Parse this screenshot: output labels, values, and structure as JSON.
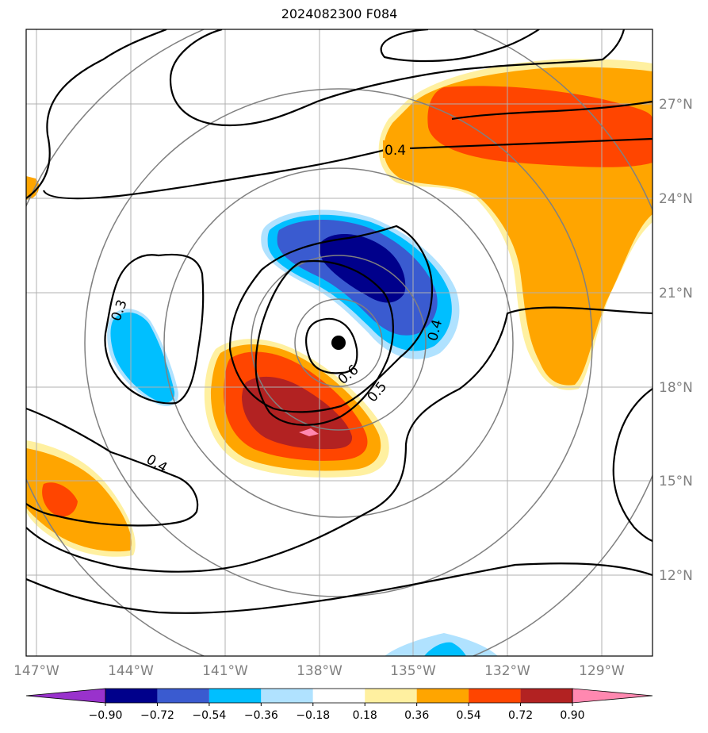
{
  "title": "2024082300 F084",
  "map": {
    "lon_ticks": [
      "147°W",
      "144°W",
      "141°W",
      "138°W",
      "135°W",
      "132°W",
      "129°W"
    ],
    "lat_ticks": [
      "27°N",
      "24°N",
      "21°N",
      "18°N",
      "15°N",
      "12°N"
    ],
    "storm_center": {
      "lon": "137.3°W",
      "lat": "19.5°N"
    },
    "contour_labels": [
      "0.4",
      "0.3",
      "0.4",
      "0.6",
      "0.5",
      "0.4"
    ]
  },
  "colorbar": {
    "colors": [
      "#9932cc",
      "#00008b",
      "#3a5bd0",
      "#00bfff",
      "#b0e2ff",
      "#ffffff",
      "#fff0a0",
      "#ffa500",
      "#ff4500",
      "#b22222",
      "#ff88b0"
    ],
    "labels": [
      "−0.90",
      "−0.72",
      "−0.54",
      "−0.36",
      "−0.18",
      "0.18",
      "0.36",
      "0.54",
      "0.72",
      "0.90"
    ]
  }
}
